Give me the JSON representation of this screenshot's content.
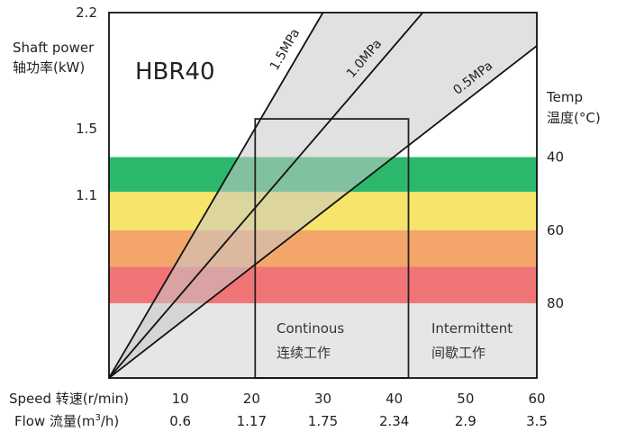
{
  "chart_data": {
    "type": "line",
    "title": "HBR40",
    "y_left": {
      "label_en": "Shaft power",
      "label_zh": "轴功率(kW)",
      "ticks": [
        "2.2",
        "1.5",
        "1.1"
      ],
      "tick_values": [
        2.2,
        1.5,
        1.1
      ],
      "range": [
        0,
        2.2
      ]
    },
    "y_right": {
      "label_en": "Temp",
      "label_zh": "温度(°C)",
      "ticks": [
        "40",
        "60",
        "80"
      ]
    },
    "x_speed": {
      "label": "Speed 转速(r/min)",
      "ticks": [
        "10",
        "20",
        "30",
        "40",
        "50",
        "60"
      ],
      "tick_values": [
        10,
        20,
        30,
        40,
        50,
        60
      ],
      "range": [
        0,
        60
      ]
    },
    "x_flow": {
      "label_prefix": "Flow 流量(m",
      "label_sup": "3",
      "label_suffix": "/h)",
      "ticks": [
        "0.6",
        "1.17",
        "1.75",
        "2.34",
        "2.9",
        "3.5"
      ]
    },
    "series": [
      {
        "name": "1.5MPa",
        "points": [
          [
            0,
            0
          ],
          [
            30,
            2.2
          ]
        ]
      },
      {
        "name": "1.0MPa",
        "points": [
          [
            0,
            0
          ],
          [
            44,
            2.2
          ]
        ]
      },
      {
        "name": "0.5MPa",
        "points": [
          [
            0,
            0
          ],
          [
            60,
            2.0
          ]
        ]
      }
    ],
    "temperature_bands": [
      {
        "color": "#2bb86d",
        "from": 1.33,
        "to": 1.12
      },
      {
        "color": "#f7e46a",
        "from": 1.12,
        "to": 0.89
      },
      {
        "color": "#f4a66a",
        "from": 0.89,
        "to": 0.67
      },
      {
        "color": "#f07577",
        "from": 0.67,
        "to": 0.45
      }
    ],
    "regions": {
      "continuous": {
        "label_en": "Continous",
        "label_zh": "连续工作",
        "x_range": [
          20.5,
          42
        ],
        "y_max": 1.56
      },
      "intermittent": {
        "label_en": "Intermittent",
        "label_zh": "间歇工作"
      }
    },
    "colors": {
      "region_fill": "#c8c8c8",
      "region_edge": "#222222",
      "line": "#111111"
    }
  }
}
